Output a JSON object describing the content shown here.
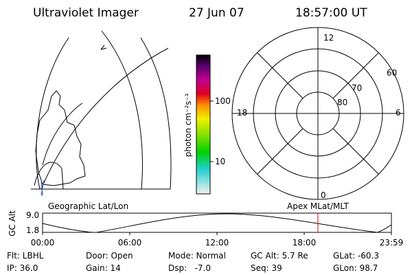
{
  "header": {
    "title": "Ultraviolet Imager",
    "date": "27 Jun 07",
    "time": "18:57:00 UT"
  },
  "colorbar": {
    "label": "photon cm⁻²s⁻¹",
    "ticks": [
      "100",
      "10"
    ]
  },
  "polar": {
    "labels": {
      "top": "12",
      "left": "18",
      "right": "6",
      "bottom": "0"
    },
    "rings": [
      "60",
      "70",
      "80"
    ]
  },
  "strip": {
    "left_title": "Geographic Lat/Lon",
    "right_title": "Apex MLat/MLT",
    "axis_label": "GC Alt",
    "ymax": "9.0",
    "ymin": "1.8",
    "times": [
      "00:00",
      "06:00",
      "12:00",
      "18:00",
      "23:59"
    ]
  },
  "footer": {
    "rows": [
      [
        "Flt: LBHL",
        "Door: Open",
        "Mode: Normal",
        "GC Alt: 5.7 Re",
        "GLat: -60.3"
      ],
      [
        "IP: 36.0",
        "Gain: 14",
        "Dsp:   -7.0",
        "Seq: 39",
        "GLon: 98.7"
      ]
    ]
  }
}
